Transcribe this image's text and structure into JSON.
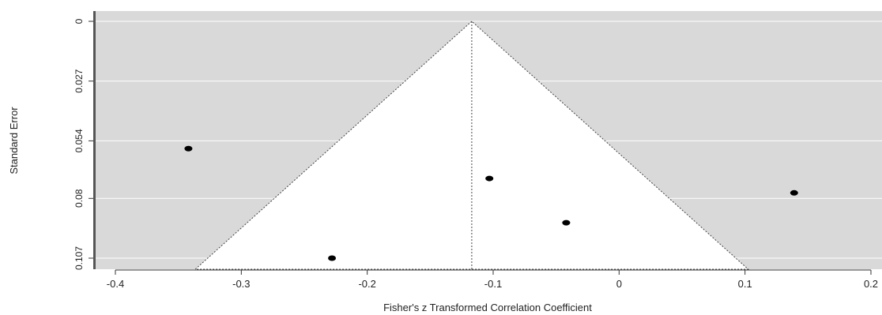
{
  "chart_data": {
    "type": "scatter",
    "plot_kind": "funnel",
    "xlabel": "Fisher's z Transformed Correlation Coefficient",
    "ylabel": "Standard Error",
    "xlim": [
      -0.41,
      0.2
    ],
    "ylim": [
      0.107,
      0
    ],
    "y_reversed": true,
    "xticks": [
      -0.4,
      -0.3,
      -0.2,
      -0.1,
      0,
      0.1,
      0.2
    ],
    "xtick_labels": [
      "-0.4",
      "-0.3",
      "-0.2",
      "-0.1",
      "0",
      "0.1",
      "0.2"
    ],
    "yticks": [
      0,
      0.027,
      0.054,
      0.08,
      0.107
    ],
    "ytick_labels": [
      "0",
      "0.027",
      "0.054",
      "0.08",
      "0.107"
    ],
    "grid": true,
    "funnel": {
      "center": -0.117,
      "apex_se": 0,
      "z": 1.96
    },
    "points": [
      {
        "x": -0.342,
        "y": 0.0575
      },
      {
        "x": -0.228,
        "y": 0.107
      },
      {
        "x": -0.103,
        "y": 0.071
      },
      {
        "x": -0.042,
        "y": 0.091
      },
      {
        "x": 0.139,
        "y": 0.0775
      }
    ],
    "colors": {
      "panel_bg": "#d9d9d9",
      "funnel_fill": "#ffffff",
      "point": "#000000",
      "grid": "#ffffff",
      "axis_bar": "#555555"
    }
  }
}
